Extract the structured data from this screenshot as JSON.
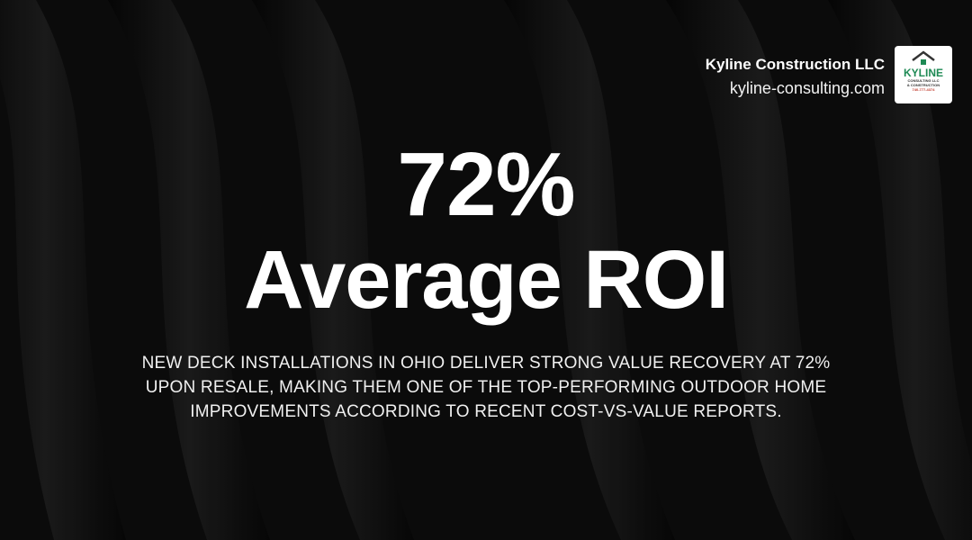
{
  "header": {
    "company": "Kyline Construction LLC",
    "website": "kyline-consulting.com"
  },
  "logo": {
    "name": "KYLINE",
    "line1": "CONSULTING LLC",
    "line2": "& CONSTRUCTION",
    "phone": "740-777-4374"
  },
  "headline": {
    "stat": "72%",
    "label": "Average ROI"
  },
  "body": "NEW DECK INSTALLATIONS IN OHIO DELIVER STRONG VALUE RECOVERY AT 72% UPON RESALE, MAKING THEM ONE OF THE TOP-PERFORMING OUTDOOR HOME IMPROVEMENTS ACCORDING TO RECENT COST-VS-VALUE REPORTS."
}
